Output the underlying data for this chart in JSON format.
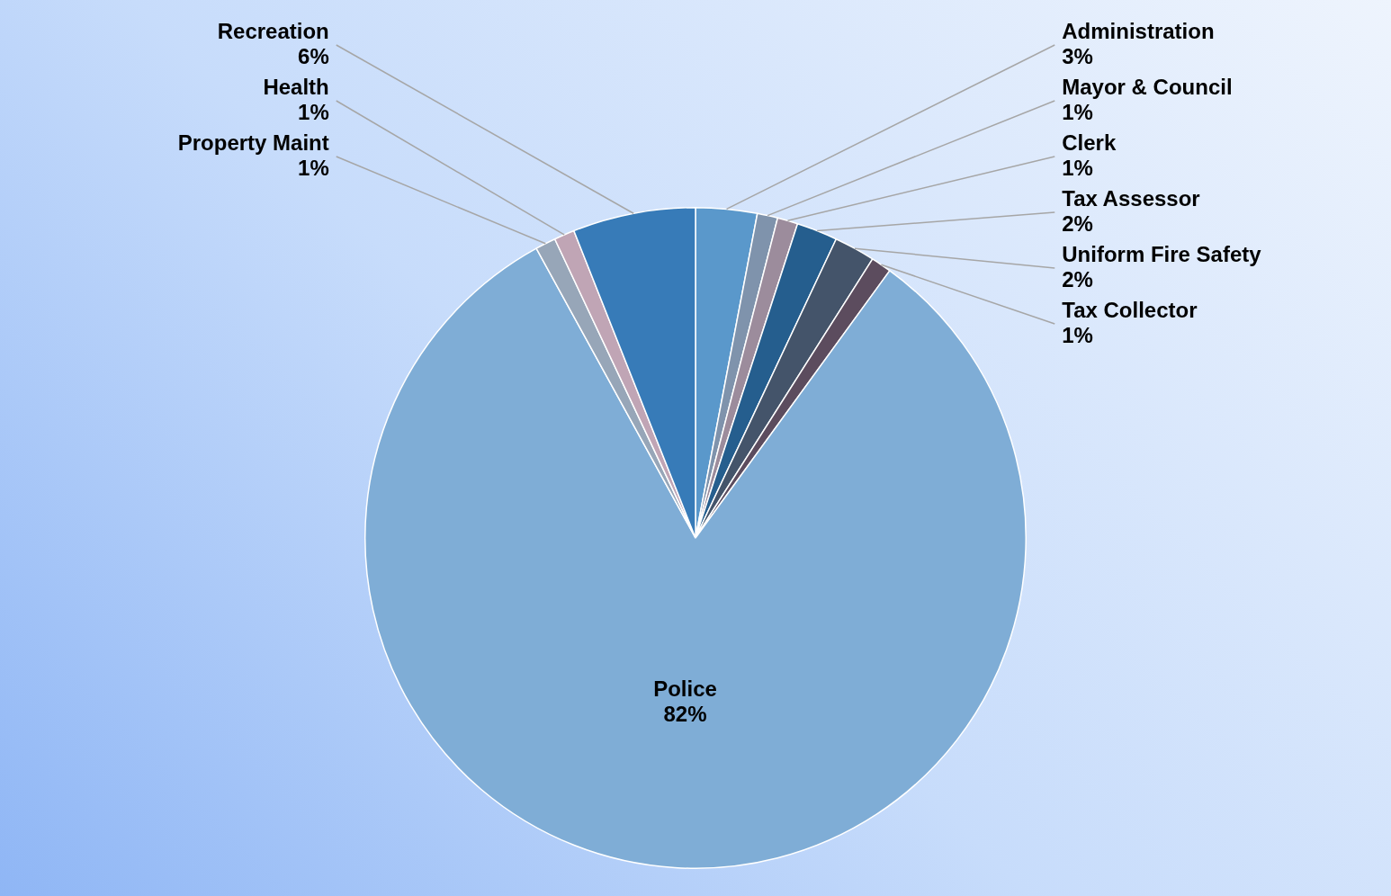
{
  "chart_data": {
    "type": "pie",
    "categories": [
      "Administration",
      "Mayor & Council",
      "Clerk",
      "Tax Assessor",
      "Uniform Fire Safety",
      "Tax Collector",
      "Police",
      "Property Maint",
      "Health",
      "Recreation"
    ],
    "values": [
      3,
      1,
      1,
      2,
      2,
      1,
      82,
      1,
      1,
      6
    ],
    "value_labels": [
      "3%",
      "1%",
      "1%",
      "2%",
      "2%",
      "1%",
      "82%",
      "1%",
      "1%",
      "6%"
    ],
    "colors": [
      "#5a98cb",
      "#7f93ac",
      "#9c8c9c",
      "#255e8e",
      "#44546a",
      "#5c4c5e",
      "#7fadd6",
      "#97a6b8",
      "#c0a5b5",
      "#377bb8"
    ]
  }
}
